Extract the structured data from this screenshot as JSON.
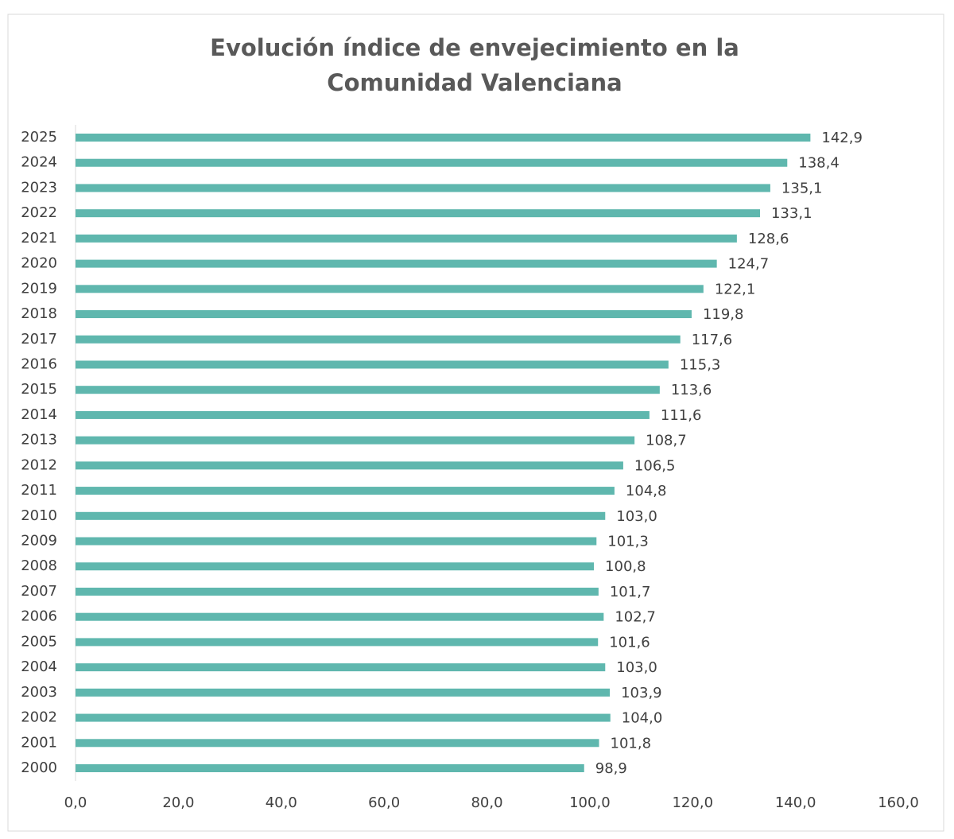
{
  "chart_data": {
    "type": "bar",
    "orientation": "horizontal",
    "title": [
      "Evolución índice de envejecimiento en la",
      "Comunidad Valenciana"
    ],
    "categories": [
      "2025",
      "2024",
      "2023",
      "2022",
      "2021",
      "2020",
      "2019",
      "2018",
      "2017",
      "2016",
      "2015",
      "2014",
      "2013",
      "2012",
      "2011",
      "2010",
      "2009",
      "2008",
      "2007",
      "2006",
      "2005",
      "2004",
      "2003",
      "2002",
      "2001",
      "2000"
    ],
    "values": [
      142.9,
      138.4,
      135.1,
      133.1,
      128.6,
      124.7,
      122.1,
      119.8,
      117.6,
      115.3,
      113.6,
      111.6,
      108.7,
      106.5,
      104.8,
      103.0,
      101.3,
      100.8,
      101.7,
      102.7,
      101.6,
      103.0,
      103.9,
      104.0,
      101.8,
      98.9
    ],
    "value_labels": [
      "142,9",
      "138,4",
      "135,1",
      "133,1",
      "128,6",
      "124,7",
      "122,1",
      "119,8",
      "117,6",
      "115,3",
      "113,6",
      "111,6",
      "108,7",
      "106,5",
      "104,8",
      "103,0",
      "101,3",
      "100,8",
      "101,7",
      "102,7",
      "101,6",
      "103,0",
      "103,9",
      "104,0",
      "101,8",
      "98,9"
    ],
    "color": "#5fb7ae",
    "xlim": [
      0,
      160
    ],
    "xticks": [
      {
        "value": 0,
        "label": "0,0"
      },
      {
        "value": 20,
        "label": "20,0"
      },
      {
        "value": 40,
        "label": "40,0"
      },
      {
        "value": 60,
        "label": "60,0"
      },
      {
        "value": 80,
        "label": "80,0"
      },
      {
        "value": 100,
        "label": "100,0"
      },
      {
        "value": 120,
        "label": "120,0"
      },
      {
        "value": 140,
        "label": "140,0"
      },
      {
        "value": 160,
        "label": "160,0"
      }
    ],
    "grid": false
  }
}
